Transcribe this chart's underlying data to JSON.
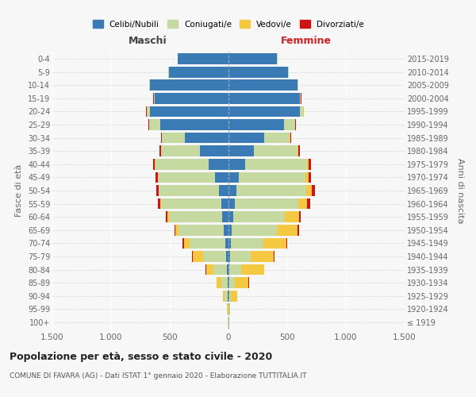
{
  "age_groups": [
    "100+",
    "95-99",
    "90-94",
    "85-89",
    "80-84",
    "75-79",
    "70-74",
    "65-69",
    "60-64",
    "55-59",
    "50-54",
    "45-49",
    "40-44",
    "35-39",
    "30-34",
    "25-29",
    "20-24",
    "15-19",
    "10-14",
    "5-9",
    "0-4"
  ],
  "birth_years": [
    "≤ 1919",
    "1920-1924",
    "1925-1929",
    "1930-1934",
    "1935-1939",
    "1940-1944",
    "1945-1949",
    "1950-1954",
    "1955-1959",
    "1960-1964",
    "1965-1969",
    "1970-1974",
    "1975-1979",
    "1980-1984",
    "1985-1989",
    "1990-1994",
    "1995-1999",
    "2000-2004",
    "2005-2009",
    "2010-2014",
    "2015-2019"
  ],
  "males_celibe": [
    2,
    3,
    5,
    8,
    12,
    18,
    28,
    38,
    52,
    62,
    78,
    115,
    170,
    240,
    370,
    580,
    670,
    630,
    670,
    510,
    430
  ],
  "males_coniugato": [
    2,
    4,
    28,
    55,
    115,
    195,
    305,
    385,
    455,
    515,
    515,
    485,
    455,
    335,
    195,
    95,
    28,
    7,
    4,
    2,
    2
  ],
  "males_vedovo": [
    1,
    4,
    14,
    38,
    62,
    88,
    48,
    28,
    14,
    7,
    4,
    2,
    2,
    2,
    2,
    2,
    1,
    1,
    0,
    0,
    0
  ],
  "males_divorziato": [
    0,
    0,
    1,
    2,
    4,
    7,
    9,
    11,
    14,
    17,
    20,
    17,
    14,
    9,
    7,
    4,
    2,
    1,
    0,
    0,
    0
  ],
  "females_nubile": [
    2,
    3,
    5,
    8,
    10,
    13,
    20,
    28,
    38,
    52,
    68,
    88,
    145,
    215,
    305,
    470,
    610,
    610,
    590,
    510,
    415
  ],
  "females_coniugata": [
    2,
    4,
    18,
    48,
    96,
    175,
    275,
    385,
    445,
    545,
    595,
    565,
    525,
    375,
    215,
    95,
    28,
    7,
    3,
    2,
    1
  ],
  "females_vedova": [
    1,
    9,
    48,
    115,
    195,
    195,
    195,
    175,
    115,
    75,
    48,
    28,
    14,
    7,
    4,
    2,
    2,
    1,
    0,
    0,
    0
  ],
  "females_divorziata": [
    0,
    0,
    1,
    2,
    4,
    9,
    11,
    14,
    19,
    24,
    27,
    21,
    17,
    11,
    7,
    4,
    2,
    1,
    0,
    0,
    0
  ],
  "colors_celibe": "#3a7ab5",
  "colors_coniugato": "#c5d9a0",
  "colors_vedovo": "#f5c842",
  "colors_divorziato": "#cc1414",
  "xlim": 1500,
  "title": "Popolazione per età, sesso e stato civile - 2020",
  "subtitle": "COMUNE DI FAVARA (AG) - Dati ISTAT 1° gennaio 2020 - Elaborazione TUTTITALIA.IT",
  "header_left": "Maschi",
  "header_right": "Femmine",
  "ylabel_left": "Fasce di età",
  "ylabel_right": "Anni di nascita",
  "legend_labels": [
    "Celibi/Nubili",
    "Coniugati/e",
    "Vedovi/e",
    "Divorziati/e"
  ],
  "bg_color": "#f7f7f7",
  "xtick_labels": [
    "1.500",
    "1.000",
    "500",
    "0",
    "500",
    "1.000",
    "1.500"
  ],
  "xtick_vals": [
    -1500,
    -1000,
    -500,
    0,
    500,
    1000,
    1500
  ]
}
